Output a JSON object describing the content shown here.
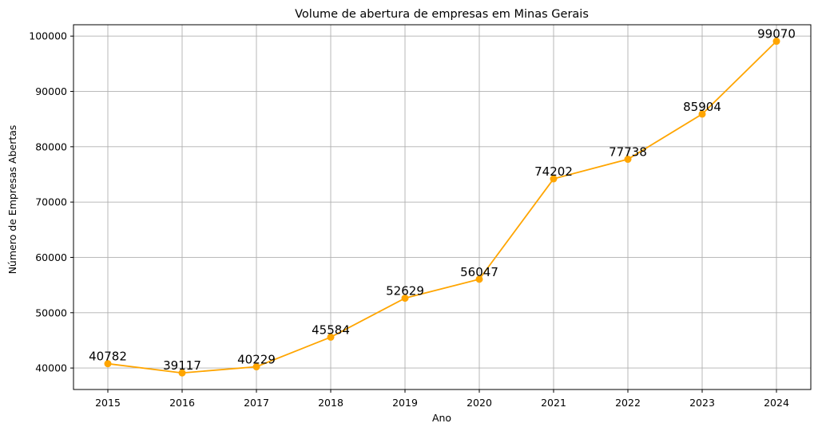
{
  "chart_data": {
    "type": "line",
    "title": "Volume de abertura de empresas em Minas Gerais",
    "xlabel": "Ano",
    "ylabel": "Número de Empresas Abertas",
    "x": [
      "2015",
      "2016",
      "2017",
      "2018",
      "2019",
      "2020",
      "2021",
      "2022",
      "2023",
      "2024"
    ],
    "series": [
      {
        "values": [
          40782,
          39117,
          40229,
          45584,
          52629,
          56047,
          74202,
          77738,
          85904,
          99070
        ],
        "color": "#FFA500"
      }
    ],
    "data_labels": [
      "40782",
      "39117",
      "40229",
      "45584",
      "52629",
      "56047",
      "74202",
      "77738",
      "85904",
      "99070"
    ],
    "yticks": [
      40000,
      50000,
      60000,
      70000,
      80000,
      90000,
      100000
    ],
    "ytick_labels": [
      "40000",
      "50000",
      "60000",
      "70000",
      "80000",
      "90000",
      "100000"
    ],
    "ylim": [
      36120,
      102050
    ],
    "grid": true,
    "legend": "none"
  }
}
